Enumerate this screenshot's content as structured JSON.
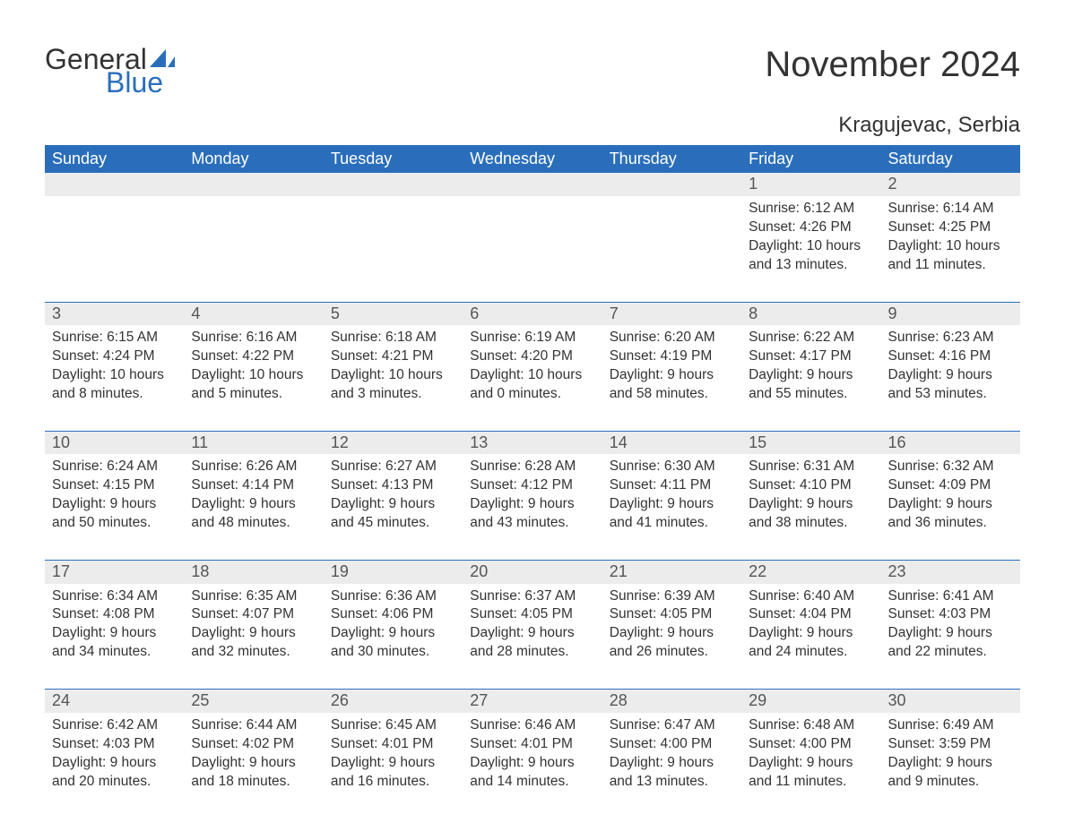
{
  "brand": {
    "part1": "General",
    "part2": "Blue",
    "accent_color": "#2a6ebb"
  },
  "title": "November 2024",
  "location": "Kragujevac, Serbia",
  "theme": {
    "header_bg": "#2a6ebb",
    "header_text": "#ffffff",
    "daynum_bg": "#ececec",
    "daynum_text": "#555555",
    "body_text": "#333333",
    "page_bg": "#ffffff",
    "title_fontsize": 40,
    "location_fontsize": 24,
    "header_fontsize": 18,
    "daynum_fontsize": 18,
    "body_fontsize": 15.5
  },
  "weekdays": [
    "Sunday",
    "Monday",
    "Tuesday",
    "Wednesday",
    "Thursday",
    "Friday",
    "Saturday"
  ],
  "weeks": [
    [
      null,
      null,
      null,
      null,
      null,
      {
        "n": "1",
        "sunrise": "Sunrise: 6:12 AM",
        "sunset": "Sunset: 4:26 PM",
        "day1": "Daylight: 10 hours",
        "day2": "and 13 minutes."
      },
      {
        "n": "2",
        "sunrise": "Sunrise: 6:14 AM",
        "sunset": "Sunset: 4:25 PM",
        "day1": "Daylight: 10 hours",
        "day2": "and 11 minutes."
      }
    ],
    [
      {
        "n": "3",
        "sunrise": "Sunrise: 6:15 AM",
        "sunset": "Sunset: 4:24 PM",
        "day1": "Daylight: 10 hours",
        "day2": "and 8 minutes."
      },
      {
        "n": "4",
        "sunrise": "Sunrise: 6:16 AM",
        "sunset": "Sunset: 4:22 PM",
        "day1": "Daylight: 10 hours",
        "day2": "and 5 minutes."
      },
      {
        "n": "5",
        "sunrise": "Sunrise: 6:18 AM",
        "sunset": "Sunset: 4:21 PM",
        "day1": "Daylight: 10 hours",
        "day2": "and 3 minutes."
      },
      {
        "n": "6",
        "sunrise": "Sunrise: 6:19 AM",
        "sunset": "Sunset: 4:20 PM",
        "day1": "Daylight: 10 hours",
        "day2": "and 0 minutes."
      },
      {
        "n": "7",
        "sunrise": "Sunrise: 6:20 AM",
        "sunset": "Sunset: 4:19 PM",
        "day1": "Daylight: 9 hours",
        "day2": "and 58 minutes."
      },
      {
        "n": "8",
        "sunrise": "Sunrise: 6:22 AM",
        "sunset": "Sunset: 4:17 PM",
        "day1": "Daylight: 9 hours",
        "day2": "and 55 minutes."
      },
      {
        "n": "9",
        "sunrise": "Sunrise: 6:23 AM",
        "sunset": "Sunset: 4:16 PM",
        "day1": "Daylight: 9 hours",
        "day2": "and 53 minutes."
      }
    ],
    [
      {
        "n": "10",
        "sunrise": "Sunrise: 6:24 AM",
        "sunset": "Sunset: 4:15 PM",
        "day1": "Daylight: 9 hours",
        "day2": "and 50 minutes."
      },
      {
        "n": "11",
        "sunrise": "Sunrise: 6:26 AM",
        "sunset": "Sunset: 4:14 PM",
        "day1": "Daylight: 9 hours",
        "day2": "and 48 minutes."
      },
      {
        "n": "12",
        "sunrise": "Sunrise: 6:27 AM",
        "sunset": "Sunset: 4:13 PM",
        "day1": "Daylight: 9 hours",
        "day2": "and 45 minutes."
      },
      {
        "n": "13",
        "sunrise": "Sunrise: 6:28 AM",
        "sunset": "Sunset: 4:12 PM",
        "day1": "Daylight: 9 hours",
        "day2": "and 43 minutes."
      },
      {
        "n": "14",
        "sunrise": "Sunrise: 6:30 AM",
        "sunset": "Sunset: 4:11 PM",
        "day1": "Daylight: 9 hours",
        "day2": "and 41 minutes."
      },
      {
        "n": "15",
        "sunrise": "Sunrise: 6:31 AM",
        "sunset": "Sunset: 4:10 PM",
        "day1": "Daylight: 9 hours",
        "day2": "and 38 minutes."
      },
      {
        "n": "16",
        "sunrise": "Sunrise: 6:32 AM",
        "sunset": "Sunset: 4:09 PM",
        "day1": "Daylight: 9 hours",
        "day2": "and 36 minutes."
      }
    ],
    [
      {
        "n": "17",
        "sunrise": "Sunrise: 6:34 AM",
        "sunset": "Sunset: 4:08 PM",
        "day1": "Daylight: 9 hours",
        "day2": "and 34 minutes."
      },
      {
        "n": "18",
        "sunrise": "Sunrise: 6:35 AM",
        "sunset": "Sunset: 4:07 PM",
        "day1": "Daylight: 9 hours",
        "day2": "and 32 minutes."
      },
      {
        "n": "19",
        "sunrise": "Sunrise: 6:36 AM",
        "sunset": "Sunset: 4:06 PM",
        "day1": "Daylight: 9 hours",
        "day2": "and 30 minutes."
      },
      {
        "n": "20",
        "sunrise": "Sunrise: 6:37 AM",
        "sunset": "Sunset: 4:05 PM",
        "day1": "Daylight: 9 hours",
        "day2": "and 28 minutes."
      },
      {
        "n": "21",
        "sunrise": "Sunrise: 6:39 AM",
        "sunset": "Sunset: 4:05 PM",
        "day1": "Daylight: 9 hours",
        "day2": "and 26 minutes."
      },
      {
        "n": "22",
        "sunrise": "Sunrise: 6:40 AM",
        "sunset": "Sunset: 4:04 PM",
        "day1": "Daylight: 9 hours",
        "day2": "and 24 minutes."
      },
      {
        "n": "23",
        "sunrise": "Sunrise: 6:41 AM",
        "sunset": "Sunset: 4:03 PM",
        "day1": "Daylight: 9 hours",
        "day2": "and 22 minutes."
      }
    ],
    [
      {
        "n": "24",
        "sunrise": "Sunrise: 6:42 AM",
        "sunset": "Sunset: 4:03 PM",
        "day1": "Daylight: 9 hours",
        "day2": "and 20 minutes."
      },
      {
        "n": "25",
        "sunrise": "Sunrise: 6:44 AM",
        "sunset": "Sunset: 4:02 PM",
        "day1": "Daylight: 9 hours",
        "day2": "and 18 minutes."
      },
      {
        "n": "26",
        "sunrise": "Sunrise: 6:45 AM",
        "sunset": "Sunset: 4:01 PM",
        "day1": "Daylight: 9 hours",
        "day2": "and 16 minutes."
      },
      {
        "n": "27",
        "sunrise": "Sunrise: 6:46 AM",
        "sunset": "Sunset: 4:01 PM",
        "day1": "Daylight: 9 hours",
        "day2": "and 14 minutes."
      },
      {
        "n": "28",
        "sunrise": "Sunrise: 6:47 AM",
        "sunset": "Sunset: 4:00 PM",
        "day1": "Daylight: 9 hours",
        "day2": "and 13 minutes."
      },
      {
        "n": "29",
        "sunrise": "Sunrise: 6:48 AM",
        "sunset": "Sunset: 4:00 PM",
        "day1": "Daylight: 9 hours",
        "day2": "and 11 minutes."
      },
      {
        "n": "30",
        "sunrise": "Sunrise: 6:49 AM",
        "sunset": "Sunset: 3:59 PM",
        "day1": "Daylight: 9 hours",
        "day2": "and 9 minutes."
      }
    ]
  ]
}
